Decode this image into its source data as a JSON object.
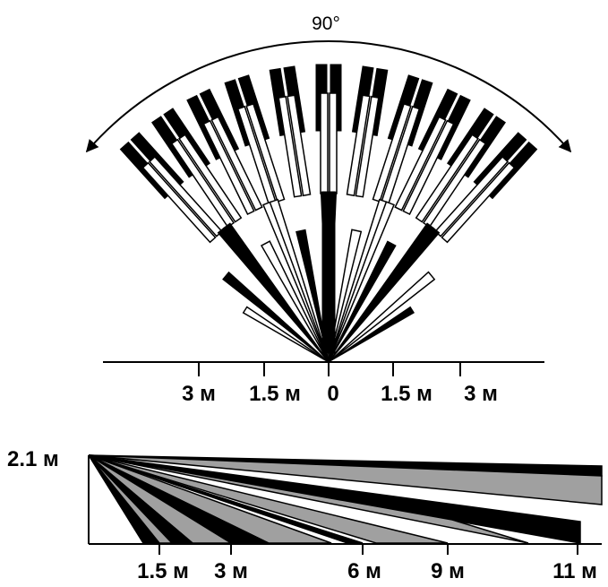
{
  "top_view": {
    "angle_label": "90°",
    "scale_labels": [
      "3 м",
      "1.5 м",
      "0",
      "1.5 м",
      "3 м"
    ]
  },
  "side_view": {
    "height_label": "2.1 м",
    "distance_labels": [
      "1.5 м",
      "3 м",
      "6 м",
      "9 м",
      "11 м"
    ]
  },
  "colors": {
    "ink": "#000000",
    "fill_gray": "#a0a0a0",
    "paper": "#ffffff"
  }
}
